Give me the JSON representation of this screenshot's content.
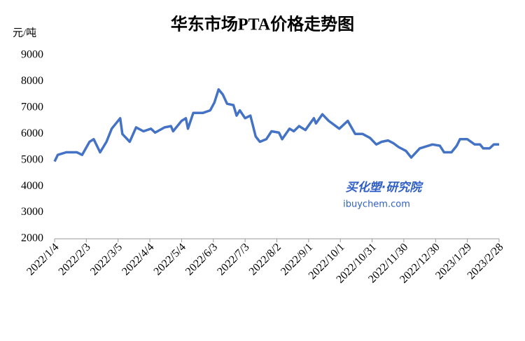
{
  "chart_data": {
    "type": "line",
    "title": "华东市场PTA价格走势图",
    "y_label": "元/吨",
    "annotations": [
      "买化塑·研究院",
      "ibuychem.com"
    ],
    "x": [
      "2022/1/4",
      "2022/1/7",
      "2022/1/15",
      "2022/1/25",
      "2022/1/30",
      "2022/2/6",
      "2022/2/10",
      "2022/2/16",
      "2022/2/22",
      "2022/2/27",
      "2022/3/7",
      "2022/3/9",
      "2022/3/16",
      "2022/3/22",
      "2022/3/29",
      "2022/4/5",
      "2022/4/9",
      "2022/4/18",
      "2022/4/24",
      "2022/4/26",
      "2022/5/4",
      "2022/5/8",
      "2022/5/10",
      "2022/5/15",
      "2022/5/24",
      "2022/5/31",
      "2022/6/4",
      "2022/6/8",
      "2022/6/12",
      "2022/6/16",
      "2022/6/22",
      "2022/6/25",
      "2022/6/28",
      "2022/7/3",
      "2022/7/8",
      "2022/7/13",
      "2022/7/17",
      "2022/7/23",
      "2022/7/28",
      "2022/8/4",
      "2022/8/7",
      "2022/8/14",
      "2022/8/18",
      "2022/8/23",
      "2022/8/29",
      "2022/9/6",
      "2022/9/8",
      "2022/9/14",
      "2022/9/20",
      "2022/9/30",
      "2022/10/8",
      "2022/10/15",
      "2022/10/22",
      "2022/10/29",
      "2022/11/4",
      "2022/11/9",
      "2022/11/15",
      "2022/11/20",
      "2022/11/25",
      "2022/12/2",
      "2022/12/7",
      "2022/12/15",
      "2022/12/27",
      "2023/1/3",
      "2023/1/7",
      "2023/1/14",
      "2023/1/19",
      "2023/1/22",
      "2023/1/29",
      "2023/2/5",
      "2023/2/10",
      "2023/2/13",
      "2023/2/19",
      "2023/2/23",
      "2023/2/28"
    ],
    "series": [
      {
        "name": "华东市场PTA价格",
        "color": "#4472c4",
        "values": [
          4950,
          5200,
          5300,
          5300,
          5200,
          5700,
          5800,
          5300,
          5700,
          6200,
          6600,
          6000,
          5700,
          6250,
          6100,
          6200,
          6050,
          6250,
          6300,
          6100,
          6500,
          6600,
          6200,
          6800,
          6800,
          6900,
          7200,
          7700,
          7500,
          7150,
          7100,
          6700,
          6900,
          6600,
          6700,
          5900,
          5700,
          5800,
          6100,
          6050,
          5800,
          6200,
          6100,
          6300,
          6150,
          6600,
          6400,
          6750,
          6500,
          6200,
          6500,
          6000,
          6000,
          5850,
          5600,
          5700,
          5750,
          5650,
          5500,
          5350,
          5100,
          5450,
          5600,
          5550,
          5300,
          5300,
          5550,
          5800,
          5800,
          5600,
          5600,
          5450,
          5450,
          5600,
          5600
        ]
      }
    ],
    "xlim": [
      "2022/1/4",
      "2023/2/28"
    ],
    "xticks": [
      "2022/1/4",
      "2022/2/3",
      "2022/3/5",
      "2022/4/4",
      "2022/5/4",
      "2022/6/3",
      "2022/7/3",
      "2022/8/2",
      "2022/9/1",
      "2022/10/1",
      "2022/10/31",
      "2022/11/30",
      "2022/12/30",
      "2023/1/29",
      "2023/2/28"
    ],
    "ylim": [
      2000,
      9000
    ],
    "yticks": [
      2000,
      3000,
      4000,
      5000,
      6000,
      7000,
      8000,
      9000
    ],
    "grid": false
  }
}
